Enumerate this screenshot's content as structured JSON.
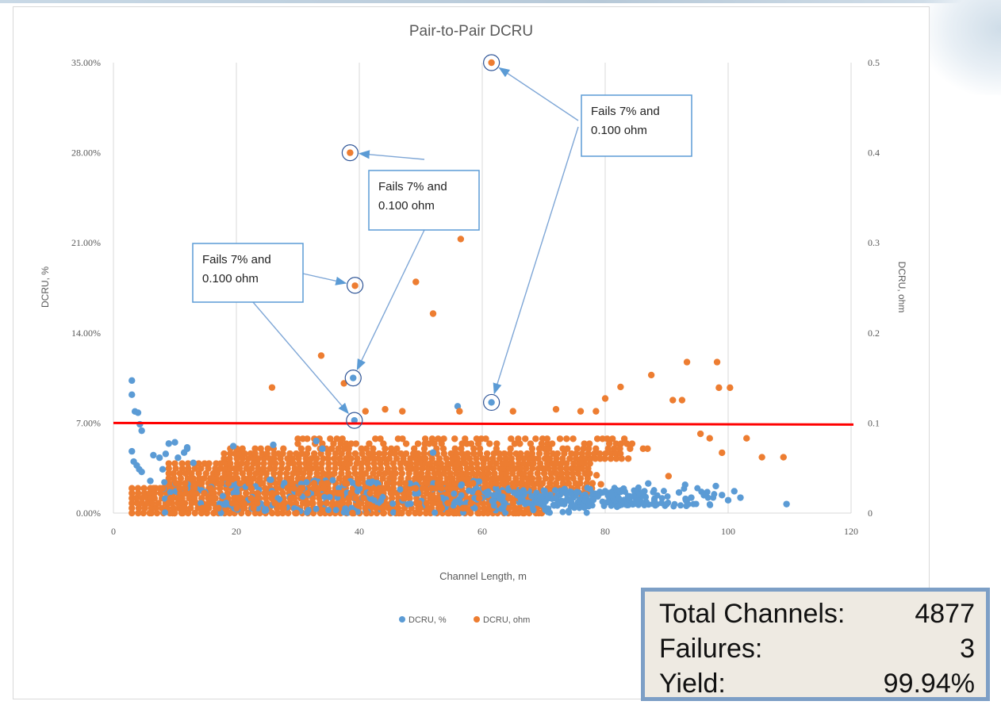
{
  "chart_data": {
    "type": "scatter",
    "title": "Pair-to-Pair DCRU",
    "xlabel": "Channel Length, m",
    "ylabel": "DCRU, %",
    "y2label": "DCRU, ohm",
    "xlim": [
      0,
      120
    ],
    "ylim": [
      0,
      35
    ],
    "y2lim": [
      0,
      0.5
    ],
    "x_ticks": [
      "0",
      "20",
      "40",
      "60",
      "80",
      "100",
      "120"
    ],
    "y_ticks": [
      "0.00%",
      "7.00%",
      "14.00%",
      "21.00%",
      "28.00%",
      "35.00%"
    ],
    "y2_ticks": [
      "0",
      "0.1",
      "0.2",
      "0.3",
      "0.4",
      "0.5"
    ],
    "grid": "vertical",
    "legend_position": "bottom",
    "threshold": {
      "y": 7,
      "color": "#ff0000"
    },
    "series": [
      {
        "name": "DCRU, %",
        "axis": "left",
        "color": "#5b9bd5",
        "points": [
          [
            3.0,
            10.3
          ],
          [
            3.0,
            9.2
          ],
          [
            3.5,
            7.9
          ],
          [
            4.0,
            7.8
          ],
          [
            4.3,
            6.9
          ],
          [
            4.6,
            6.4
          ],
          [
            3.0,
            4.8
          ],
          [
            3.3,
            4.0
          ],
          [
            3.8,
            3.7
          ],
          [
            4.2,
            3.4
          ],
          [
            4.6,
            3.2
          ],
          [
            6,
            2.5
          ],
          [
            6.5,
            4.5
          ],
          [
            7.5,
            4.3
          ],
          [
            8,
            3.4
          ],
          [
            8.5,
            4.6
          ],
          [
            9,
            5.4
          ],
          [
            10,
            5.5
          ],
          [
            10.5,
            4.3
          ],
          [
            11.5,
            4.7
          ],
          [
            12,
            5.1
          ],
          [
            13,
            3.9
          ],
          [
            12,
            5.0
          ],
          [
            19.5,
            5.2
          ],
          [
            26,
            5.3
          ],
          [
            33,
            5.6
          ],
          [
            34,
            5.0
          ],
          [
            52,
            4.7
          ],
          [
            39,
            10.5
          ],
          [
            39.2,
            7.2
          ],
          [
            61.5,
            8.6
          ],
          [
            56,
            8.3
          ],
          [
            80,
            1.7
          ],
          [
            81,
            1.4
          ],
          [
            83,
            1.9
          ],
          [
            84,
            1.2
          ],
          [
            85,
            0.8
          ],
          [
            86,
            1.5
          ],
          [
            87,
            2.3
          ],
          [
            88,
            1.0
          ],
          [
            90,
            0.7
          ],
          [
            92,
            1.6
          ],
          [
            93,
            2.2
          ],
          [
            94,
            1.2
          ],
          [
            98,
            2.1
          ],
          [
            99,
            1.4
          ],
          [
            100,
            1.0
          ],
          [
            101,
            1.7
          ],
          [
            102,
            1.2
          ],
          [
            109.5,
            0.7
          ]
        ]
      },
      {
        "name": "DCRU, ohm",
        "axis": "right",
        "color": "#ed7d31",
        "points": [
          [
            61.5,
            0.5
          ],
          [
            38.5,
            0.4
          ],
          [
            39.3,
            0.2524
          ],
          [
            56.5,
            0.3042
          ],
          [
            49.2,
            0.2566
          ],
          [
            52.0,
            0.2214
          ],
          [
            33.8,
            0.1748
          ],
          [
            25.8,
            0.1394
          ],
          [
            37.5,
            0.144
          ],
          [
            93.3,
            0.1676
          ],
          [
            98.2,
            0.1676
          ],
          [
            87.5,
            0.1532
          ],
          [
            82.5,
            0.14
          ],
          [
            98.5,
            0.1392
          ],
          [
            100.3,
            0.1392
          ],
          [
            91.0,
            0.1254
          ],
          [
            92.5,
            0.1254
          ],
          [
            80.0,
            0.1272
          ],
          [
            41.0,
            0.113
          ],
          [
            44.2,
            0.1152
          ],
          [
            47.0,
            0.113
          ],
          [
            56.3,
            0.113
          ],
          [
            65.0,
            0.113
          ],
          [
            72.0,
            0.1152
          ],
          [
            76.0,
            0.113
          ],
          [
            78.5,
            0.113
          ],
          [
            95.5,
            0.088
          ],
          [
            97.0,
            0.083
          ],
          [
            103.0,
            0.083
          ],
          [
            99.0,
            0.067
          ],
          [
            105.5,
            0.062
          ],
          [
            109.0,
            0.062
          ],
          [
            78.6,
            0.042
          ],
          [
            79.3,
            0.032
          ],
          [
            90.3,
            0.041
          ],
          [
            69.2,
            0.0
          ]
        ]
      }
    ],
    "annotations": [
      {
        "text": [
          "Fails 7% and",
          "0.100 ohm"
        ],
        "targets": [
          [
            39.3,
            17.7
          ],
          [
            39.2,
            7.2
          ]
        ]
      },
      {
        "text": [
          "Fails 7% and",
          "0.100 ohm"
        ],
        "targets": [
          [
            38.5,
            28.0
          ],
          [
            39,
            10.5
          ]
        ]
      },
      {
        "text": [
          "Fails 7% and",
          "0.100 ohm"
        ],
        "targets": [
          [
            61.5,
            35.0
          ],
          [
            61.5,
            8.6
          ]
        ]
      }
    ]
  },
  "stats": {
    "rows": [
      {
        "label": "Total Channels:",
        "value": "4877"
      },
      {
        "label": "Failures:",
        "value": "3"
      },
      {
        "label": "Yield:",
        "value": "99.94%"
      }
    ]
  }
}
